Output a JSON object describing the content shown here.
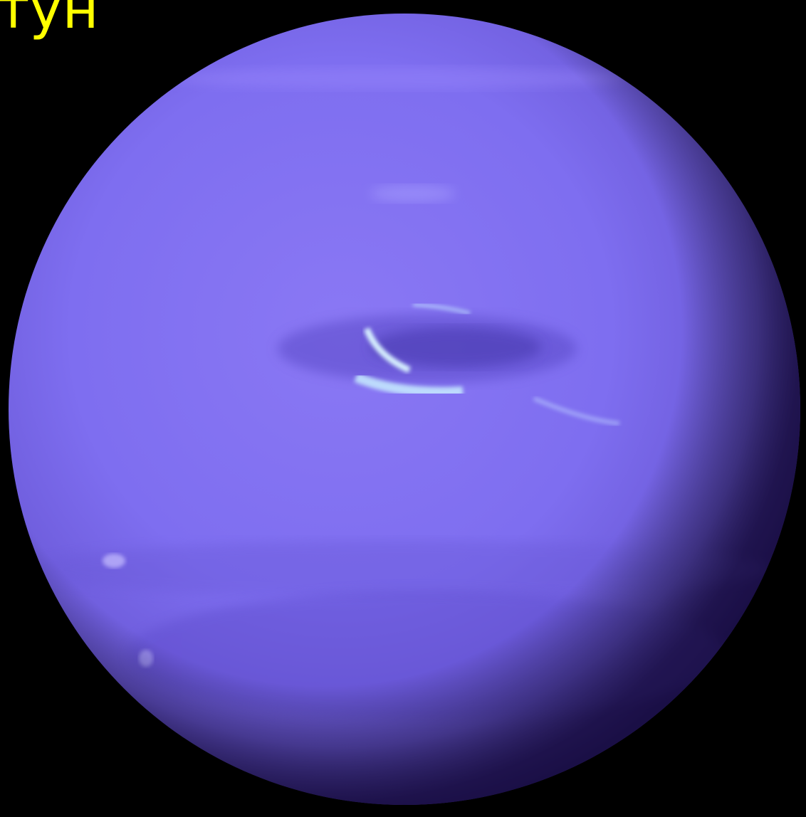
{
  "caption": "тун"
}
